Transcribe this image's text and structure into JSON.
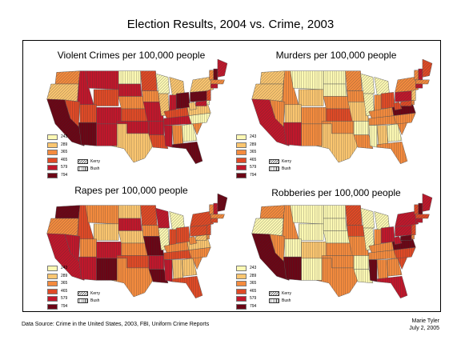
{
  "title": "Election Results, 2004 vs. Crime, 2003",
  "legend_values": [
    "243",
    "289",
    "365",
    "465",
    "579",
    "794"
  ],
  "legend_colors": [
    "#fdf9b4",
    "#fbc670",
    "#f48b3e",
    "#e04a26",
    "#c1172b",
    "#6b0515"
  ],
  "pattern_legend": {
    "kerry": "Kerry",
    "bush": "Bush"
  },
  "panels": [
    {
      "title": "Violent Crimes per 100,000 people",
      "levels": [
        2,
        1,
        5,
        4,
        4,
        3,
        3,
        3,
        4,
        0,
        4,
        2,
        3,
        5,
        4,
        4,
        1,
        3,
        2,
        4,
        4,
        3,
        0,
        1,
        1,
        4,
        5,
        3,
        4,
        4,
        2,
        0,
        5,
        2,
        0,
        1,
        1,
        5,
        1,
        2,
        5,
        4,
        2,
        4,
        3,
        4,
        0
      ]
    },
    {
      "title": "Murders per 100,000 people",
      "levels": [
        1,
        1,
        4,
        2,
        0,
        1,
        2,
        1,
        2,
        0,
        0,
        2,
        3,
        4,
        2,
        2,
        1,
        2,
        2,
        1,
        0,
        2,
        0,
        0,
        0,
        2,
        3,
        2,
        2,
        0,
        1,
        0,
        2,
        2,
        2,
        5,
        3,
        4,
        2,
        2,
        4,
        3,
        2,
        4,
        1,
        3,
        2
      ]
    },
    {
      "title": "Rapes per 100,000 people",
      "levels": [
        5,
        2,
        4,
        3,
        2,
        1,
        4,
        2,
        4,
        1,
        4,
        1,
        2,
        4,
        5,
        3,
        2,
        3,
        2,
        5,
        4,
        5,
        4,
        0,
        0,
        3,
        3,
        2,
        3,
        4,
        1,
        1,
        3,
        2,
        2,
        1,
        2,
        3,
        3,
        2,
        4,
        5,
        2,
        3,
        3,
        1,
        2
      ]
    },
    {
      "title": "Robberies per 100,000 people",
      "levels": [
        2,
        0,
        5,
        2,
        0,
        0,
        2,
        0,
        1,
        0,
        0,
        0,
        2,
        5,
        0,
        2,
        2,
        3,
        3,
        2,
        0,
        0,
        0,
        0,
        0,
        2,
        4,
        2,
        2,
        5,
        2,
        2,
        4,
        3,
        3,
        5,
        4,
        4,
        4,
        3,
        5,
        4,
        3,
        4,
        3,
        5,
        2
      ]
    }
  ],
  "footer": {
    "source": "Data Source: Crime in the United States, 2003, FBI, Uniform Crime Reports",
    "author": "Marie Tyler",
    "date": "July 2, 2005"
  }
}
